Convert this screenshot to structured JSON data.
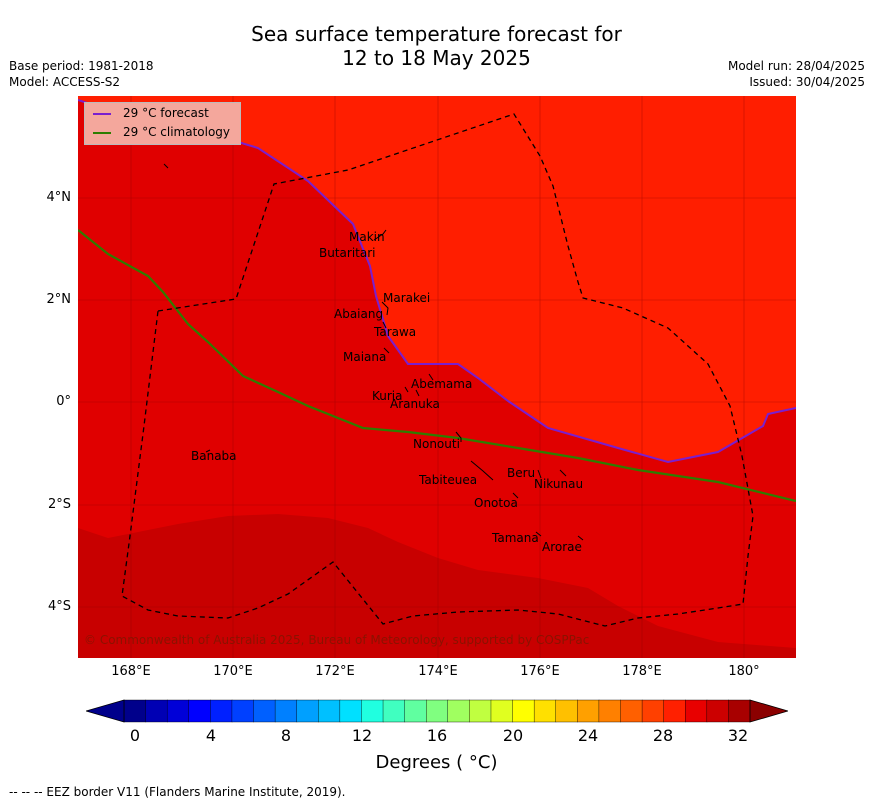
{
  "title": "Sea surface temperature forecast for\n12 to 18 May 2025",
  "title_line1": "Sea surface temperature forecast for",
  "title_line2": "12 to 18 May 2025",
  "meta_left": [
    "Base period: 1981-2018",
    "Model: ACCESS-S2"
  ],
  "meta_right": [
    "Model run: 28/04/2025",
    "Issued: 30/04/2025"
  ],
  "legend": [
    {
      "label": "29 °C  forecast",
      "color": "#7b1fa2"
    },
    {
      "label": "29 °C  climatology",
      "color": "#2e7d00"
    }
  ],
  "copyright": "© Commonwealth of Australia 2025, Bureau of Meteorology, supported by COSPPac",
  "x_ticks": [
    "168°E",
    "170°E",
    "172°E",
    "174°E",
    "176°E",
    "178°E",
    "180°"
  ],
  "y_ticks": [
    "4°N",
    "2°N",
    "0°",
    "2°S",
    "4°S"
  ],
  "islands": [
    "Makin",
    "Butaritari",
    "Marakei",
    "Abaiang",
    "Tarawa",
    "Maiana",
    "Abemama",
    "Kuria",
    "Aranuka",
    "Nonouti",
    "Banaba",
    "Tabiteuea",
    "Beru",
    "Nikunau",
    "Onotoa",
    "Tamana",
    "Arorae"
  ],
  "colorbar": {
    "ticks": [
      "0",
      "4",
      "8",
      "12",
      "16",
      "20",
      "24",
      "28",
      "32"
    ],
    "label": "Degrees ( °C)",
    "colors": [
      "#00008b",
      "#0000b4",
      "#0000d8",
      "#0000ff",
      "#0020ff",
      "#0040ff",
      "#0060ff",
      "#0080ff",
      "#00a0ff",
      "#00c0ff",
      "#00e0ff",
      "#20ffe0",
      "#40ffc0",
      "#60ff a0",
      "#80ff80",
      "#a0ff60",
      "#c0ff40",
      "#e0ff20",
      "#ffff00",
      "#ffe000",
      "#ffc000",
      "#ffa000",
      "#ff8000",
      "#ff6000",
      "#ff4000",
      "#ff2000",
      "#e80000",
      "#cc0000",
      "#a80000"
    ]
  },
  "footnote": "--  --  -- EEZ border V11 (Flanders Marine Institute, 2019)."
}
